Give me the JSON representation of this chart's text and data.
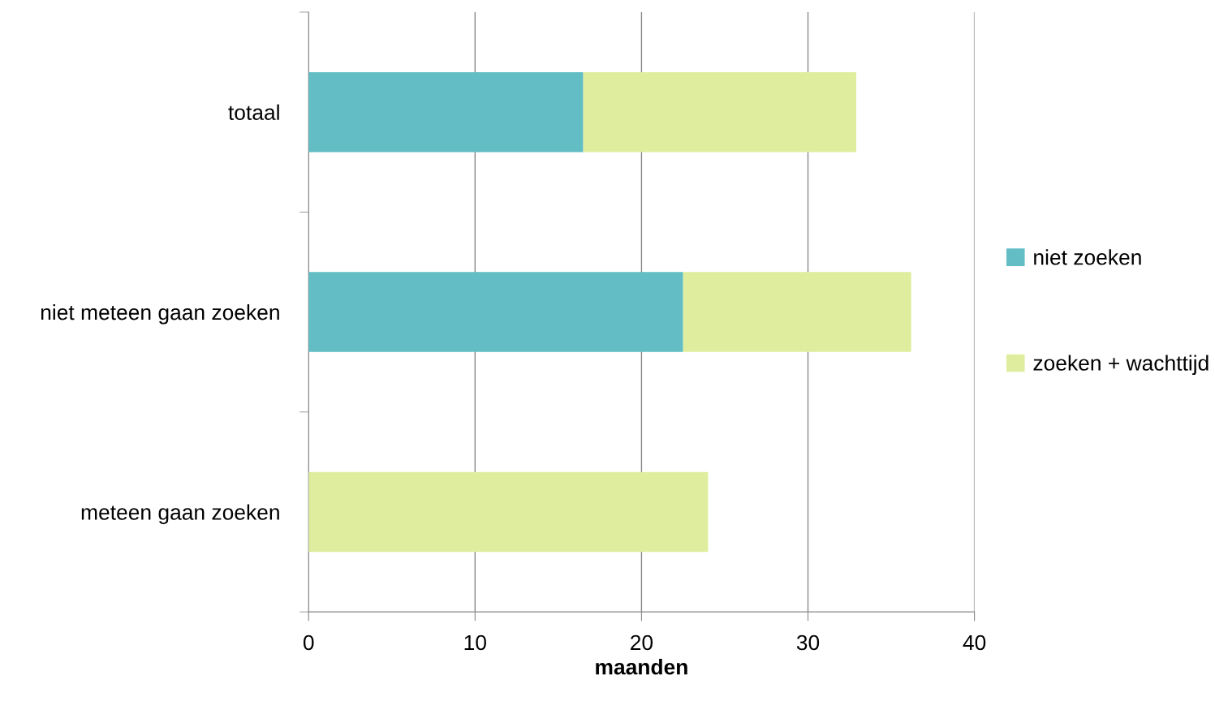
{
  "chart_data": {
    "type": "bar",
    "orientation": "horizontal",
    "stacked": true,
    "categories": [
      "totaal",
      "niet meteen gaan zoeken",
      "meteen gaan zoeken"
    ],
    "series": [
      {
        "name": "niet zoeken",
        "color": "#62bdc4",
        "values": [
          16.5,
          22.5,
          0
        ]
      },
      {
        "name": "zoeken + wachttijd",
        "color": "#dfee9e",
        "values": [
          16.4,
          13.7,
          24.0
        ]
      }
    ],
    "xlabel": "maanden",
    "xlim": [
      0,
      40
    ],
    "xticks": [
      0,
      10,
      20,
      30,
      40
    ],
    "grid": "x",
    "legend": "right"
  }
}
